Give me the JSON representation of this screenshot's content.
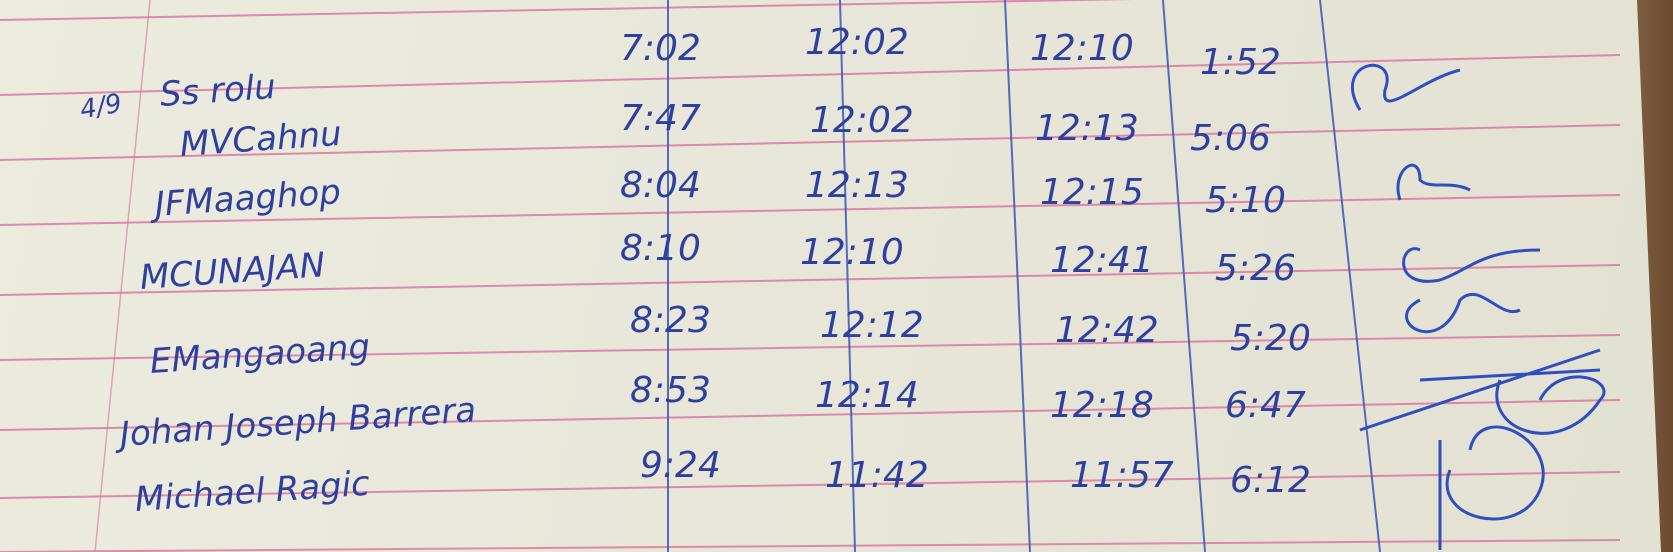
{
  "date_mark": "4/9",
  "colors": {
    "ink": "#2f3f9e",
    "rule_line": "#d9739a",
    "column_line": "#3a55b5",
    "paper": "#ecebe0"
  },
  "rows": [
    {
      "name": "Ss rolu",
      "time_in": "7:02",
      "lunch_out": "12:02",
      "lunch_in": "12:10",
      "time_out": "1:52"
    },
    {
      "name": "MVCahnu",
      "time_in": "7:47",
      "lunch_out": "12:02",
      "lunch_in": "12:13",
      "time_out": "5:06"
    },
    {
      "name": "JFMaaghop",
      "time_in": "8:04",
      "lunch_out": "12:13",
      "lunch_in": "12:15",
      "time_out": "5:10"
    },
    {
      "name": "MCUNAJAN",
      "time_in": "8:10",
      "lunch_out": "12:10",
      "lunch_in": "12:41",
      "time_out": "5:26"
    },
    {
      "name": "EMangaoang",
      "time_in": "8:23",
      "lunch_out": "12:12",
      "lunch_in": "12:42",
      "time_out": "5:20"
    },
    {
      "name": "Johan Joseph Barrera",
      "time_in": "8:53",
      "lunch_out": "12:14",
      "lunch_in": "12:18",
      "time_out": "6:47"
    },
    {
      "name": "Michael Ragic",
      "time_in": "9:24",
      "lunch_out": "11:42",
      "lunch_in": "11:57",
      "time_out": "6:12"
    }
  ]
}
